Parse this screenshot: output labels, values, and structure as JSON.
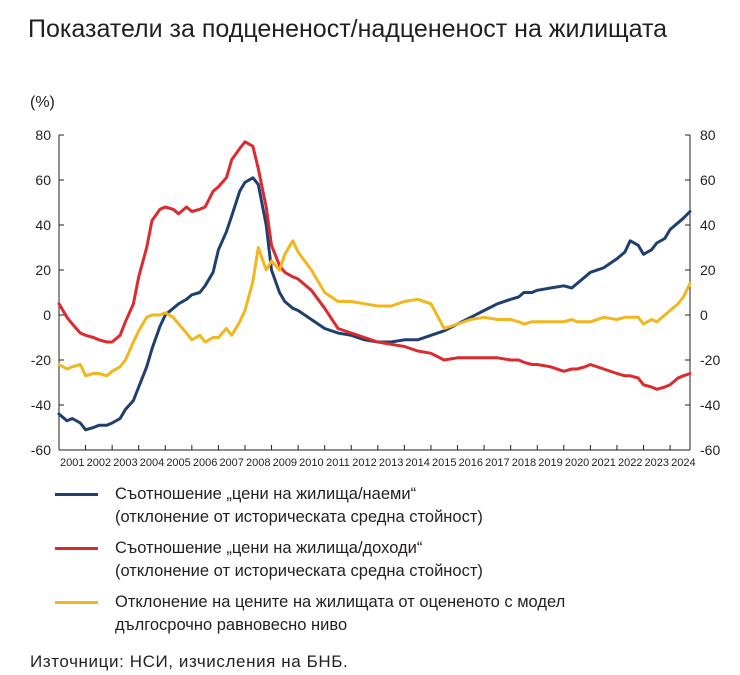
{
  "title": "Показатели за подцененост/надцененост на жилищата",
  "unit_label": "(%)",
  "legend": [
    {
      "line1": "Съотношение „цени на жилища/наеми“",
      "line2": "(отклонение от историческата средна стойност)",
      "color": "#1f3f6e"
    },
    {
      "line1": "Съотношение „цени на жилища/доходи“",
      "line2": "(отклонение от историческата средна стойност)",
      "color": "#dc2a2f"
    },
    {
      "line1": "Отклонение на цените на жилищата от оцененото с модел",
      "line2": "дългосрочно равновесно ниво",
      "color": "#f2b61f"
    }
  ],
  "source": "Източници: НСИ, изчисления на БНБ.",
  "chart_data": {
    "type": "line",
    "title": "Показатели за подцененост/надцененост на жилищата",
    "ylabel": "(%)",
    "ylim": [
      -60,
      80
    ],
    "y_ticks": [
      80,
      60,
      40,
      20,
      0,
      -20,
      -40,
      -60
    ],
    "x_start": 2001,
    "x_end": 2024.75,
    "x_tick_labels": [
      "2001",
      "2002",
      "2003",
      "2004",
      "2005",
      "2006",
      "2007",
      "2008",
      "2009",
      "2010",
      "2011",
      "2012",
      "2013",
      "2014",
      "2015",
      "2016",
      "2017",
      "2018",
      "2019",
      "2020",
      "2021",
      "2022",
      "2023",
      "2024"
    ],
    "grid": false,
    "dual_axis": true,
    "series": [
      {
        "name": "Съотношение „цени на жилища/наеми“ (отклонение от историческата средна стойност)",
        "color": "#1f3f6e",
        "x": [
          2001.0,
          2001.3,
          2001.5,
          2001.8,
          2002.0,
          2002.3,
          2002.5,
          2002.8,
          2003.0,
          2003.3,
          2003.5,
          2003.8,
          2004.0,
          2004.3,
          2004.5,
          2004.8,
          2005.0,
          2005.3,
          2005.5,
          2005.8,
          2006.0,
          2006.3,
          2006.5,
          2006.8,
          2007.0,
          2007.3,
          2007.5,
          2007.8,
          2008.0,
          2008.3,
          2008.5,
          2008.8,
          2009.0,
          2009.3,
          2009.5,
          2009.8,
          2010.0,
          2010.5,
          2011.0,
          2011.5,
          2012.0,
          2012.5,
          2013.0,
          2013.5,
          2014.0,
          2014.5,
          2015.0,
          2015.5,
          2016.0,
          2016.5,
          2017.0,
          2017.5,
          2018.0,
          2018.3,
          2018.5,
          2018.8,
          2019.0,
          2019.5,
          2020.0,
          2020.3,
          2020.5,
          2020.8,
          2021.0,
          2021.5,
          2022.0,
          2022.3,
          2022.5,
          2022.8,
          2023.0,
          2023.3,
          2023.5,
          2023.8,
          2024.0,
          2024.3,
          2024.5,
          2024.75
        ],
        "values": [
          -44,
          -47,
          -46,
          -48,
          -51,
          -50,
          -49,
          -49,
          -48,
          -46,
          -42,
          -38,
          -32,
          -23,
          -15,
          -5,
          0,
          3,
          5,
          7,
          9,
          10,
          13,
          19,
          29,
          37,
          44,
          55,
          59,
          61,
          58,
          40,
          20,
          10,
          6,
          3,
          2,
          -2,
          -6,
          -8,
          -9,
          -11,
          -12,
          -12,
          -11,
          -11,
          -9,
          -7,
          -4,
          -1,
          2,
          5,
          7,
          8,
          10,
          10,
          11,
          12,
          13,
          12,
          14,
          17,
          19,
          21,
          25,
          28,
          33,
          31,
          27,
          29,
          32,
          34,
          38,
          41,
          43,
          46
        ]
      },
      {
        "name": "Съотношение „цени на жилища/доходи“ (отклонение от историческата средна стойност)",
        "color": "#dc2a2f",
        "x": [
          2001.0,
          2001.3,
          2001.5,
          2001.8,
          2002.0,
          2002.3,
          2002.5,
          2002.8,
          2003.0,
          2003.3,
          2003.5,
          2003.8,
          2004.0,
          2004.3,
          2004.5,
          2004.8,
          2005.0,
          2005.3,
          2005.5,
          2005.8,
          2006.0,
          2006.3,
          2006.5,
          2006.8,
          2007.0,
          2007.3,
          2007.5,
          2007.8,
          2008.0,
          2008.3,
          2008.5,
          2008.8,
          2009.0,
          2009.3,
          2009.5,
          2009.8,
          2010.0,
          2010.5,
          2011.0,
          2011.5,
          2012.0,
          2012.5,
          2013.0,
          2013.5,
          2014.0,
          2014.5,
          2015.0,
          2015.5,
          2016.0,
          2016.5,
          2017.0,
          2017.5,
          2018.0,
          2018.3,
          2018.5,
          2018.8,
          2019.0,
          2019.5,
          2020.0,
          2020.3,
          2020.5,
          2020.8,
          2021.0,
          2021.5,
          2022.0,
          2022.3,
          2022.5,
          2022.8,
          2023.0,
          2023.3,
          2023.5,
          2023.8,
          2024.0,
          2024.3,
          2024.5,
          2024.75
        ],
        "values": [
          5,
          -1,
          -4,
          -8,
          -9,
          -10,
          -11,
          -12,
          -12,
          -9,
          -3,
          5,
          17,
          30,
          42,
          47,
          48,
          47,
          45,
          48,
          46,
          47,
          48,
          55,
          57,
          61,
          69,
          74,
          77,
          75,
          65,
          48,
          31,
          22,
          19,
          17,
          16,
          11,
          3,
          -6,
          -8,
          -10,
          -12,
          -13,
          -14,
          -16,
          -17,
          -20,
          -19,
          -19,
          -19,
          -19,
          -20,
          -20,
          -21,
          -22,
          -22,
          -23,
          -25,
          -24,
          -24,
          -23,
          -22,
          -24,
          -26,
          -27,
          -27,
          -28,
          -31,
          -32,
          -33,
          -32,
          -31,
          -28,
          -27,
          -26
        ]
      },
      {
        "name": "Отклонение на цените на жилищата от оцененото с модел дългосрочно равновесно ниво",
        "color": "#f2b61f",
        "x": [
          2001.0,
          2001.3,
          2001.5,
          2001.8,
          2002.0,
          2002.3,
          2002.5,
          2002.8,
          2003.0,
          2003.3,
          2003.5,
          2003.8,
          2004.0,
          2004.3,
          2004.5,
          2004.8,
          2005.0,
          2005.3,
          2005.5,
          2005.8,
          2006.0,
          2006.3,
          2006.5,
          2006.8,
          2007.0,
          2007.3,
          2007.5,
          2007.8,
          2008.0,
          2008.3,
          2008.5,
          2008.8,
          2009.0,
          2009.3,
          2009.5,
          2009.8,
          2010.0,
          2010.5,
          2011.0,
          2011.5,
          2012.0,
          2012.5,
          2013.0,
          2013.5,
          2014.0,
          2014.5,
          2015.0,
          2015.5,
          2016.0,
          2016.5,
          2017.0,
          2017.5,
          2018.0,
          2018.3,
          2018.5,
          2018.8,
          2019.0,
          2019.5,
          2020.0,
          2020.3,
          2020.5,
          2020.8,
          2021.0,
          2021.5,
          2022.0,
          2022.3,
          2022.5,
          2022.8,
          2023.0,
          2023.3,
          2023.5,
          2023.8,
          2024.0,
          2024.3,
          2024.5,
          2024.75
        ],
        "values": [
          -22,
          -24,
          -23,
          -22,
          -27,
          -26,
          -26,
          -27,
          -25,
          -23,
          -20,
          -12,
          -7,
          -1,
          0,
          0,
          1,
          -1,
          -4,
          -8,
          -11,
          -9,
          -12,
          -10,
          -10,
          -6,
          -9,
          -3,
          2,
          15,
          30,
          20,
          24,
          20,
          27,
          33,
          28,
          20,
          10,
          6,
          6,
          5,
          4,
          4,
          6,
          7,
          5,
          -6,
          -4,
          -2,
          -1,
          -2,
          -2,
          -3,
          -4,
          -3,
          -3,
          -3,
          -3,
          -2,
          -3,
          -3,
          -3,
          -1,
          -2,
          -1,
          -1,
          -1,
          -4,
          -2,
          -3,
          0,
          2,
          5,
          8,
          14
        ]
      }
    ]
  }
}
